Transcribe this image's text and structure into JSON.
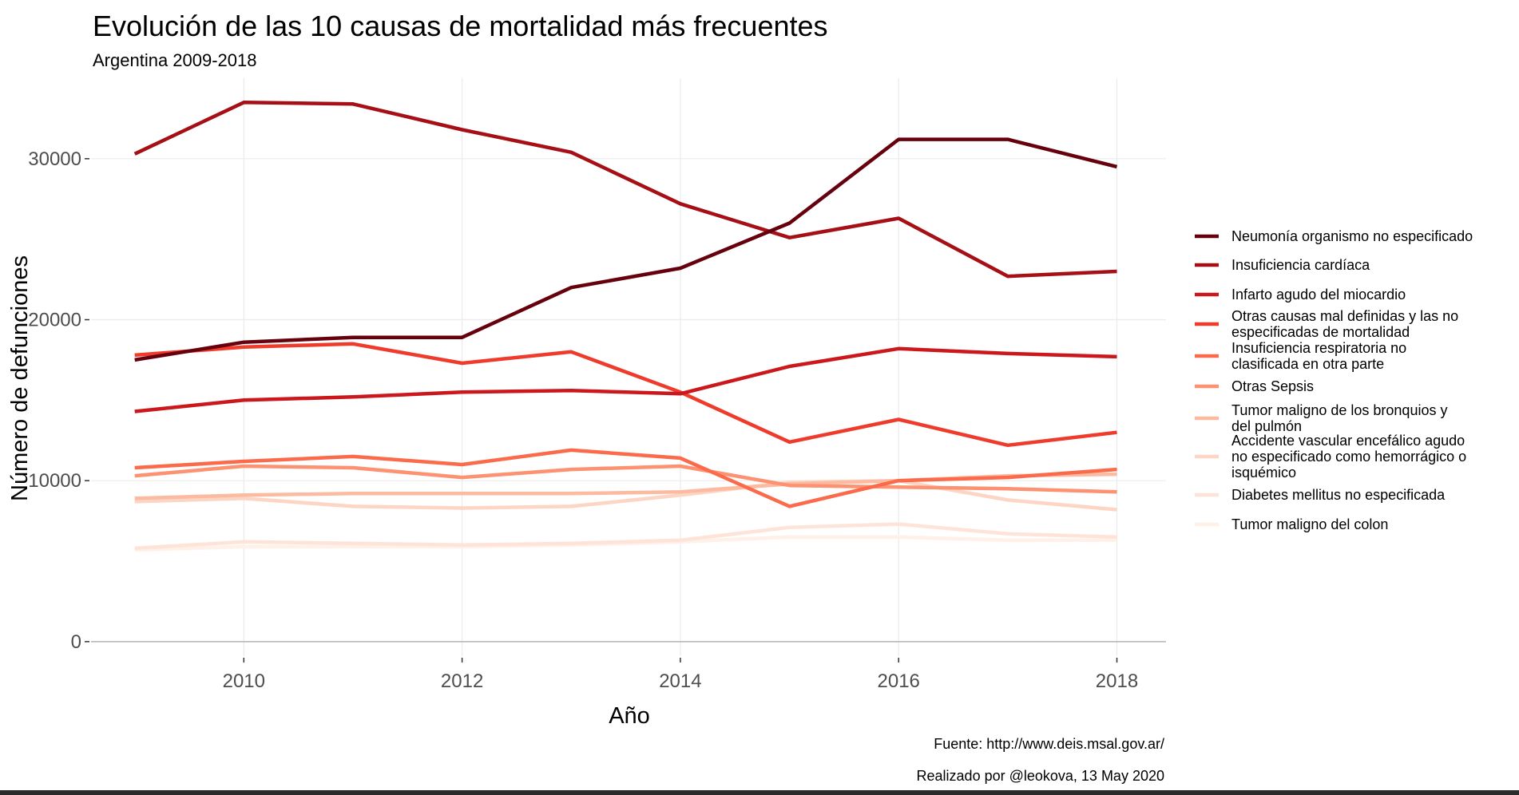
{
  "chart_data": {
    "type": "line",
    "title": "Evolución de las 10 causas de mortalidad más frecuentes",
    "subtitle": "Argentina 2009-2018",
    "xlabel": "Año",
    "ylabel": "Número de defunciones",
    "xlim": [
      2008.6,
      2018.45
    ],
    "ylim": [
      -900,
      35000
    ],
    "x_ticks": [
      2010,
      2012,
      2014,
      2016,
      2018
    ],
    "x_tick_labels": [
      "2010",
      "2012",
      "2014",
      "2016",
      "2018"
    ],
    "y_ticks": [
      0,
      10000,
      20000,
      30000
    ],
    "y_tick_labels": [
      "0",
      "10000",
      "20000",
      "30000"
    ],
    "grid": true,
    "legend_position": "right",
    "x": [
      2009,
      2010,
      2011,
      2012,
      2013,
      2014,
      2015,
      2016,
      2017,
      2018
    ],
    "series": [
      {
        "name": "Neumonía organismo no especificado",
        "color": "#67000d",
        "legend_lines": [
          "Neumonía organismo no especificado"
        ],
        "values": [
          17500,
          18600,
          18900,
          18900,
          22000,
          23200,
          26000,
          31200,
          31200,
          29500
        ]
      },
      {
        "name": "Insuficiencia cardíaca",
        "color": "#a50f15",
        "legend_lines": [
          "Insuficiencia cardíaca"
        ],
        "values": [
          30300,
          33500,
          33400,
          31800,
          30400,
          27200,
          25100,
          26300,
          22700,
          23000
        ]
      },
      {
        "name": "Infarto agudo del miocardio",
        "color": "#cb181d",
        "legend_lines": [
          "Infarto agudo del miocardio"
        ],
        "values": [
          14300,
          15000,
          15200,
          15500,
          15600,
          15400,
          17100,
          18200,
          17900,
          17700
        ]
      },
      {
        "name": "Otras causas mal definidas y las no especificadas de mortalidad",
        "color": "#ef3b2c",
        "legend_lines": [
          "Otras causas mal definidas y las no",
          "especificadas de mortalidad"
        ],
        "values": [
          17800,
          18300,
          18500,
          17300,
          18000,
          15500,
          12400,
          13800,
          12200,
          13000
        ]
      },
      {
        "name": "Insuficiencia respiratoria no clasificada en otra parte",
        "color": "#fb6a4a",
        "legend_lines": [
          "Insuficiencia respiratoria no",
          "clasificada en otra parte"
        ],
        "values": [
          10800,
          11200,
          11500,
          11000,
          11900,
          11400,
          8400,
          10000,
          10200,
          10700
        ]
      },
      {
        "name": "Otras Sepsis",
        "color": "#fc9272",
        "legend_lines": [
          "Otras Sepsis"
        ],
        "values": [
          10300,
          10900,
          10800,
          10200,
          10700,
          10900,
          9700,
          9600,
          9500,
          9300
        ]
      },
      {
        "name": "Tumor maligno de los bronquios y del pulmón",
        "color": "#fcbba1",
        "legend_lines": [
          "Tumor maligno de los bronquios y",
          "del pulmón"
        ],
        "values": [
          8900,
          9100,
          9200,
          9200,
          9200,
          9300,
          9800,
          10000,
          10300,
          10400
        ]
      },
      {
        "name": "Accidente vascular encefálico agudo no especificado como hemorrágico o isquémico",
        "color": "#fdd5c4",
        "legend_lines": [
          "Accidente vascular encefálico agudo",
          "no especificado como hemorrágico o",
          "isquémico"
        ],
        "values": [
          8700,
          8900,
          8400,
          8300,
          8400,
          9100,
          9900,
          10000,
          8800,
          8200
        ]
      },
      {
        "name": "Diabetes mellitus no especificada",
        "color": "#fee4d8",
        "legend_lines": [
          "Diabetes mellitus no especificada"
        ],
        "values": [
          5800,
          6200,
          6100,
          6000,
          6100,
          6300,
          7100,
          7300,
          6700,
          6500
        ]
      },
      {
        "name": "Tumor maligno del colon",
        "color": "#fff0e8",
        "legend_lines": [
          "Tumor maligno del colon"
        ],
        "values": [
          5700,
          5900,
          5900,
          5900,
          6000,
          6200,
          6500,
          6500,
          6300,
          6300
        ]
      }
    ],
    "caption_source": "Fuente: http://www.deis.msal.gov.ar/",
    "caption_author": "Realizado por @leokova, 13 May 2020"
  }
}
